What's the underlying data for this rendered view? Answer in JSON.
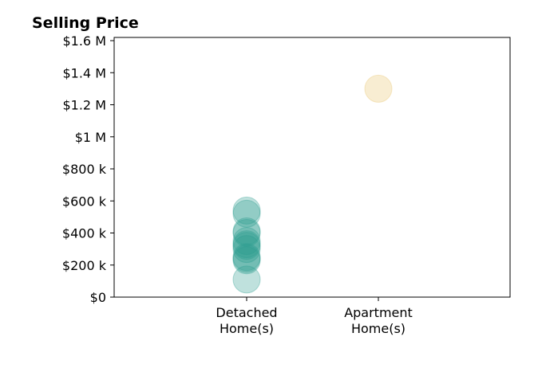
{
  "chart_data": {
    "type": "scatter",
    "title": "Selling Price",
    "xlabel": "",
    "ylabel": "",
    "categories": [
      [
        "Detached",
        "Home(s)"
      ],
      [
        "Apartment",
        "Home(s)"
      ]
    ],
    "ylim": [
      0,
      1620000
    ],
    "y_ticks": [
      0,
      200000,
      400000,
      600000,
      800000,
      1000000,
      1200000,
      1400000,
      1600000
    ],
    "y_tick_labels": [
      "$0",
      "$200 k",
      "$400 k",
      "$600 k",
      "$800 k",
      "$1 M",
      "$1.2 M",
      "$1.4 M",
      "$1.6 M"
    ],
    "grid": false,
    "legend": "none",
    "series": [
      {
        "category_index": 0,
        "color": "#2a9d8f",
        "opacity": 0.3,
        "values": [
          110000,
          230000,
          240000,
          250000,
          300000,
          320000,
          330000,
          350000,
          400000,
          410000,
          520000,
          540000
        ]
      },
      {
        "category_index": 1,
        "color": "#e9c46a",
        "opacity": 0.3,
        "values": [
          1300000
        ]
      }
    ]
  }
}
